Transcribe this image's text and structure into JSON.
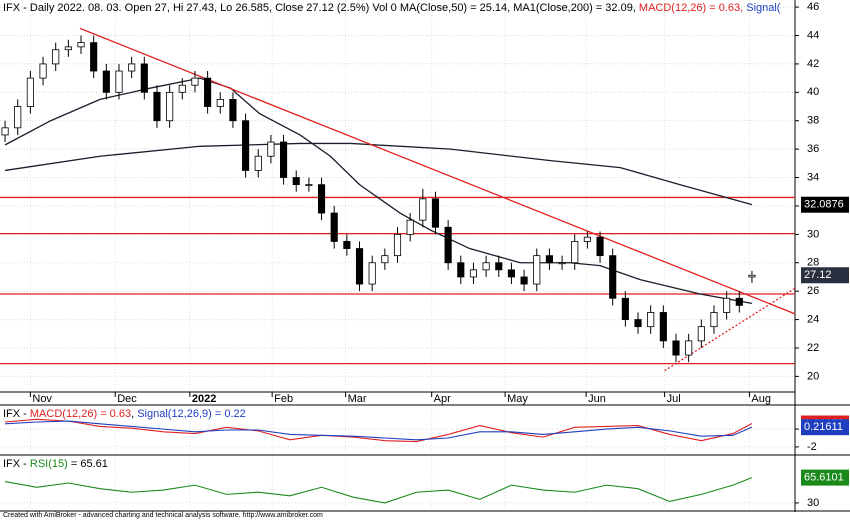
{
  "chart_data": [
    {
      "type": "candlestick",
      "title_parts": [
        {
          "text": "IFX - Daily 2022. 08. 03. Open 27, Hi 27.43, Lo 26.585, Close 27.12 (2.5%) Vol 0 MA(Close,50) = 25.14, MA1(Close,200) = 32.09, ",
          "color": "#000000"
        },
        {
          "text": "MACD(12,26) = 0.63, ",
          "color": "#e02020"
        },
        {
          "text": "Signal(",
          "color": "#1f3fbf"
        }
      ],
      "x": [
        0,
        1,
        2,
        3,
        4,
        5,
        6,
        7,
        8,
        9,
        10,
        11,
        12,
        13,
        14,
        15,
        16,
        17,
        18,
        19,
        20,
        21,
        22,
        23,
        24,
        25,
        26,
        27,
        28,
        29,
        30,
        31,
        32,
        33,
        34,
        35,
        36,
        37,
        38,
        39,
        40,
        41,
        42,
        43,
        44,
        45,
        46,
        47,
        48,
        49,
        50,
        51,
        52,
        53,
        54,
        55,
        56,
        57,
        58,
        59
      ],
      "open": [
        37,
        37.5,
        39,
        41,
        42,
        43,
        43.2,
        43.5,
        41.5,
        40,
        41.5,
        42,
        40,
        38,
        40,
        40.5,
        41,
        39,
        39.5,
        38,
        34.5,
        35.5,
        36.5,
        34,
        33.5,
        33.5,
        31.5,
        29.5,
        29,
        26.5,
        28,
        28.5,
        30,
        31,
        32.5,
        30.5,
        28,
        27,
        27.5,
        28,
        27.5,
        27,
        26.5,
        28.5,
        28,
        28,
        29.5,
        29.8,
        28.5,
        25.5,
        24,
        23.5,
        24.5,
        22.5,
        21.5,
        22.5,
        23.5,
        24.5,
        25.5,
        27
      ],
      "high": [
        38,
        39.5,
        41.5,
        42.5,
        43.5,
        43.7,
        44,
        44,
        42,
        42,
        42.5,
        42.5,
        40.5,
        40.5,
        41,
        41.5,
        41.5,
        40,
        40,
        38.5,
        36,
        37,
        37,
        34.5,
        34,
        34,
        32,
        30,
        29.5,
        28.5,
        29,
        30.5,
        31.5,
        33.2,
        33,
        31,
        28.5,
        28,
        28.5,
        28.5,
        28,
        27.5,
        29,
        29,
        28.5,
        30,
        30.2,
        30.2,
        29,
        26,
        24.5,
        25,
        25,
        23,
        23,
        24,
        25,
        26,
        26,
        27.43
      ],
      "low": [
        36.5,
        37,
        38.5,
        40.5,
        41.5,
        42.5,
        42.7,
        41,
        39.5,
        39.5,
        41,
        39.5,
        37.5,
        37.5,
        39.5,
        40,
        38.5,
        38.5,
        37.5,
        34,
        34,
        35,
        33.5,
        33,
        33,
        31,
        29,
        28.5,
        26,
        26,
        27.5,
        28,
        29.5,
        30.5,
        30,
        27.5,
        26.5,
        26.5,
        27,
        27,
        26.5,
        26,
        26,
        27.5,
        27.5,
        27.5,
        29,
        28,
        25,
        23.5,
        23,
        23,
        22,
        21,
        21,
        22,
        23,
        24,
        24.5,
        26.585
      ],
      "close": [
        37.5,
        39,
        41,
        42,
        43,
        43.2,
        43.5,
        41.5,
        40,
        41.5,
        42,
        40,
        38,
        40,
        40.5,
        41,
        39,
        39.5,
        38,
        34.5,
        35.5,
        36.5,
        34,
        33.5,
        33.5,
        31.5,
        29.5,
        29,
        26.5,
        28,
        28.5,
        30,
        31,
        32.5,
        30.5,
        28,
        27,
        27.5,
        28,
        27.5,
        27,
        26.5,
        28.5,
        28,
        28,
        29.5,
        29.8,
        28.5,
        25.5,
        24,
        23.5,
        24.5,
        22.5,
        21.5,
        22.5,
        23.5,
        24.5,
        25.5,
        25,
        27.12
      ],
      "up_color": "#ffffff",
      "down_color": "#000000",
      "lines": [
        {
          "color": "#1c1c2c",
          "x": [
            0,
            3.6,
            7.5,
            11.5,
            15.4,
            17.8,
            20.1,
            23.3,
            25.7,
            28,
            31.2,
            33.6,
            36.7,
            40.7,
            44.6,
            47,
            50.2,
            54.9,
            59
          ],
          "values": [
            36.3,
            38,
            39.5,
            40.3,
            41,
            40.3,
            38.5,
            37,
            35.5,
            33.5,
            31.5,
            30.3,
            29,
            28,
            28,
            27.8,
            26.8,
            25.8,
            25.14
          ]
        },
        {
          "color": "#1c1c2c",
          "x": [
            0,
            7.5,
            15.4,
            23.3,
            27.3,
            35.2,
            43,
            48.6,
            53.3,
            59
          ],
          "values": [
            34.5,
            35.5,
            36.2,
            36.4,
            36.4,
            36,
            35.2,
            34.7,
            33.5,
            32.09
          ]
        }
      ],
      "hlines": [
        {
          "value": 32.6,
          "color": "#e02020"
        },
        {
          "value": 30.05,
          "color": "#e02020"
        },
        {
          "value": 25.8,
          "color": "#e02020"
        },
        {
          "value": 20.9,
          "color": "#e02020"
        }
      ],
      "trendlines": [
        {
          "x": [
            5.92,
            62.4
          ],
          "values": [
            44.5,
            24.4
          ],
          "color": "#e02020",
          "dashed": false
        },
        {
          "x": [
            52.1,
            62.4
          ],
          "values": [
            20.4,
            26.2
          ],
          "color": "#e02020",
          "dashed": true
        }
      ],
      "price_labels": [
        {
          "value": 32.0876,
          "color": "#000000"
        },
        {
          "value": 27.12,
          "color": "#2b3040"
        }
      ],
      "xlim": [
        -0.4,
        62.4
      ],
      "xticks": [
        {
          "value": 2,
          "label": "Nov"
        },
        {
          "value": 8.7,
          "label": "Dec"
        },
        {
          "value": 14.6,
          "label": "2022",
          "bold": true
        },
        {
          "value": 21.1,
          "label": "Feb"
        },
        {
          "value": 26.9,
          "label": "Mar"
        },
        {
          "value": 33.7,
          "label": "Apr"
        },
        {
          "value": 39.5,
          "label": "May"
        },
        {
          "value": 45.9,
          "label": "Jun"
        },
        {
          "value": 52.1,
          "label": "Jul"
        },
        {
          "value": 58.8,
          "label": "Aug"
        }
      ],
      "ylim": [
        18.9,
        46.5
      ],
      "yticks": [
        20,
        22,
        24,
        26,
        28,
        30,
        32,
        34,
        36,
        38,
        40,
        42,
        44,
        46
      ],
      "grid": true
    },
    {
      "type": "line",
      "title_parts": [
        {
          "text": "IFX - ",
          "color": "#000000"
        },
        {
          "text": "MACD(12,26) = 0.63",
          "color": "#e02020"
        },
        {
          "text": ", ",
          "color": "#000000"
        },
        {
          "text": "Signal(12,26,9) = 0.22",
          "color": "#1f3fbf"
        }
      ],
      "series": [
        {
          "color": "#e02020",
          "x": [
            0,
            2.5,
            5,
            7.5,
            10,
            12.5,
            15,
            17.5,
            20,
            22.5,
            25,
            27.5,
            30,
            32.5,
            35,
            37.5,
            40,
            42.5,
            45,
            47.5,
            50,
            52.5,
            55,
            57.5,
            59
          ],
          "values": [
            0.8,
            1.1,
            0.9,
            0.3,
            0.1,
            -0.3,
            -0.5,
            0.2,
            -0.2,
            -1.2,
            -0.7,
            -0.9,
            -1.3,
            -1.4,
            -0.6,
            0.4,
            -0.4,
            -0.9,
            0.2,
            0.3,
            0.4,
            -0.6,
            -1.3,
            -0.5,
            0.63
          ]
        },
        {
          "color": "#1f3fbf",
          "x": [
            0,
            2.5,
            5,
            7.5,
            10,
            12.5,
            15,
            17.5,
            20,
            22.5,
            25,
            27.5,
            30,
            32.5,
            35,
            37.5,
            40,
            42.5,
            45,
            47.5,
            50,
            52.5,
            55,
            57.5,
            59
          ],
          "values": [
            0.6,
            0.8,
            0.9,
            0.6,
            0.3,
            0,
            -0.3,
            -0.1,
            -0.1,
            -0.6,
            -0.7,
            -0.8,
            -1,
            -1.2,
            -1,
            -0.3,
            -0.3,
            -0.6,
            -0.3,
            0,
            0.2,
            -0.2,
            -0.8,
            -0.7,
            0.22
          ]
        }
      ],
      "price_labels": [
        {
          "value": 0.63073,
          "color": "#e02020"
        },
        {
          "value": 0.21611,
          "color": "#1f3fbf"
        }
      ],
      "xlim": [
        -0.4,
        62.4
      ],
      "ylim": [
        -2.8,
        2.6
      ],
      "yticks": [
        0,
        -2
      ],
      "grid": true
    },
    {
      "type": "line",
      "title_parts": [
        {
          "text": "IFX - ",
          "color": "#000000"
        },
        {
          "text": "RSI(15)",
          "color": "#1a8a1a"
        },
        {
          "text": " = 65.61",
          "color": "#000000"
        }
      ],
      "series": [
        {
          "color": "#1a8a1a",
          "x": [
            0,
            2.5,
            5,
            7.5,
            10,
            12.5,
            15,
            17.5,
            20,
            22.5,
            25,
            27.5,
            30,
            32.5,
            35,
            37.5,
            40,
            42.5,
            45,
            47.5,
            50,
            52.5,
            55,
            57.5,
            59
          ],
          "values": [
            60,
            52,
            58,
            50,
            45,
            48,
            55,
            42,
            45,
            40,
            52,
            38,
            30,
            45,
            48,
            35,
            55,
            48,
            45,
            55,
            50,
            32,
            42,
            55,
            65.61
          ]
        }
      ],
      "price_labels": [
        {
          "value": 65.6101,
          "color": "#1a8a1a"
        }
      ],
      "xlim": [
        -0.4,
        62.4
      ],
      "ylim": [
        20,
        96
      ],
      "yticks": [
        30
      ],
      "grid": true
    }
  ],
  "footer": "Created with AmiBroker - advanced charting and technical analysis software. http://www.amibroker.com"
}
